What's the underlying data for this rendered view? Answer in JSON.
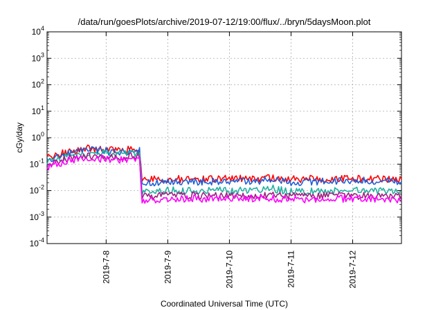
{
  "chart_data": {
    "type": "line",
    "title": "/data/run/goesPlots/archive/2019-07-12/19:00/flux/../bryn/5daysMoon.plot",
    "xlabel": "Coordinated Universal Time (UTC)",
    "ylabel": "cGy/day",
    "yscale": "log",
    "ylim": [
      0.0001,
      10000
    ],
    "xlim": [
      "2019-07-07 01:00",
      "2019-07-12 19:00"
    ],
    "grid": true,
    "y_ticks": [
      {
        "base": "10",
        "exp": "-4",
        "value": 0.0001
      },
      {
        "base": "10",
        "exp": "-3",
        "value": 0.001
      },
      {
        "base": "10",
        "exp": "-2",
        "value": 0.01
      },
      {
        "base": "10",
        "exp": "-1",
        "value": 0.1
      },
      {
        "base": "10",
        "exp": "0",
        "value": 1
      },
      {
        "base": "10",
        "exp": "1",
        "value": 10
      },
      {
        "base": "10",
        "exp": "2",
        "value": 100
      },
      {
        "base": "10",
        "exp": "3",
        "value": 1000
      },
      {
        "base": "10",
        "exp": "4",
        "value": 10000
      }
    ],
    "x_ticks": [
      {
        "label": "2019-7-8",
        "value": "2019-07-08 00:00"
      },
      {
        "label": "2019-7-9",
        "value": "2019-07-09 00:00"
      },
      {
        "label": "2019-7-10",
        "value": "2019-07-10 00:00"
      },
      {
        "label": "2019-7-11",
        "value": "2019-07-11 00:00"
      },
      {
        "label": "2019-7-12",
        "value": "2019-07-12 00:00"
      }
    ],
    "series": [
      {
        "color": "#ff0000",
        "x": [
          "2019-07-07 01:00",
          "2019-07-07 12:00",
          "2019-07-07 19:00",
          "2019-07-08 01:00",
          "2019-07-08 08:00",
          "2019-07-08 13:00",
          "2019-07-08 14:00",
          "2019-07-09 00:00",
          "2019-07-10 00:00",
          "2019-07-10 17:00",
          "2019-07-11 00:00",
          "2019-07-12 00:00",
          "2019-07-12 19:00"
        ],
        "y": [
          0.18,
          0.35,
          0.4,
          0.35,
          0.35,
          0.36,
          0.025,
          0.027,
          0.028,
          0.03,
          0.027,
          0.028,
          0.027
        ]
      },
      {
        "color": "#1f5fd8",
        "x": [
          "2019-07-07 01:00",
          "2019-07-07 12:00",
          "2019-07-07 19:00",
          "2019-07-08 01:00",
          "2019-07-08 08:00",
          "2019-07-08 13:00",
          "2019-07-08 14:00",
          "2019-07-09 00:00",
          "2019-07-10 00:00",
          "2019-07-10 17:00",
          "2019-07-11 00:00",
          "2019-07-12 00:00",
          "2019-07-12 19:00"
        ],
        "y": [
          0.15,
          0.3,
          0.36,
          0.3,
          0.3,
          0.32,
          0.02,
          0.022,
          0.022,
          0.024,
          0.021,
          0.024,
          0.022
        ]
      },
      {
        "color": "#20b0a0",
        "x": [
          "2019-07-07 01:00",
          "2019-07-07 12:00",
          "2019-07-07 19:00",
          "2019-07-08 01:00",
          "2019-07-08 08:00",
          "2019-07-08 13:00",
          "2019-07-08 14:00",
          "2019-07-09 00:00",
          "2019-07-10 00:00",
          "2019-07-10 17:00",
          "2019-07-11 00:00",
          "2019-07-12 00:00",
          "2019-07-12 19:00"
        ],
        "y": [
          0.12,
          0.24,
          0.27,
          0.24,
          0.24,
          0.25,
          0.009,
          0.01,
          0.01,
          0.012,
          0.009,
          0.01,
          0.009
        ]
      },
      {
        "color": "#a02080",
        "x": [
          "2019-07-07 01:00",
          "2019-07-07 12:00",
          "2019-07-07 19:00",
          "2019-07-08 01:00",
          "2019-07-08 08:00",
          "2019-07-08 13:00",
          "2019-07-08 14:00",
          "2019-07-09 00:00",
          "2019-07-10 00:00",
          "2019-07-10 17:00",
          "2019-07-11 00:00",
          "2019-07-12 00:00",
          "2019-07-12 19:00"
        ],
        "y": [
          0.1,
          0.19,
          0.21,
          0.19,
          0.19,
          0.2,
          0.006,
          0.0065,
          0.0065,
          0.007,
          0.006,
          0.0065,
          0.006
        ]
      },
      {
        "color": "#ff00ff",
        "x": [
          "2019-07-07 01:00",
          "2019-07-07 12:00",
          "2019-07-07 19:00",
          "2019-07-08 01:00",
          "2019-07-08 08:00",
          "2019-07-08 13:00",
          "2019-07-08 14:00",
          "2019-07-09 00:00",
          "2019-07-10 00:00",
          "2019-07-10 17:00",
          "2019-07-11 00:00",
          "2019-07-12 00:00",
          "2019-07-12 19:00"
        ],
        "y": [
          0.08,
          0.15,
          0.17,
          0.15,
          0.15,
          0.16,
          0.0045,
          0.0048,
          0.005,
          0.005,
          0.0046,
          0.005,
          0.0045
        ]
      }
    ]
  }
}
